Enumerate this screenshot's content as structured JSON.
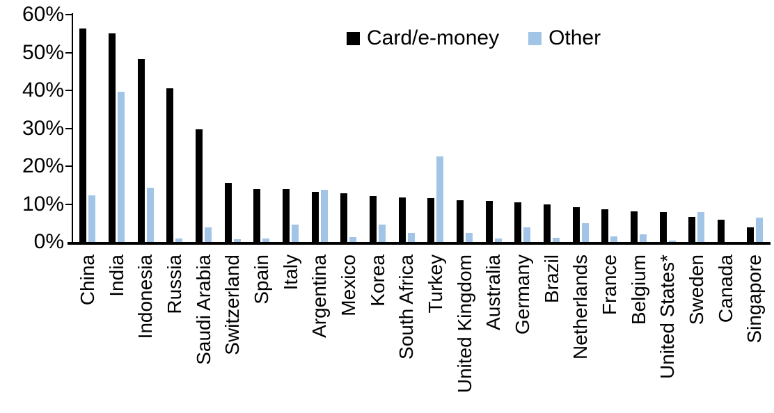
{
  "chart_data": {
    "type": "bar",
    "categories": [
      "China",
      "India",
      "Indonesia",
      "Russia",
      "Saudi Arabia",
      "Switzerland",
      "Spain",
      "Italy",
      "Argentina",
      "Mexico",
      "Korea",
      "South Africa",
      "Turkey",
      "United Kingdom",
      "Australia",
      "Germany",
      "Brazil",
      "Netherlands",
      "France",
      "Belgium",
      "United States*",
      "Sweden",
      "Canada",
      "Singapore"
    ],
    "series": [
      {
        "name": "Card/e-money",
        "color": "#000000",
        "values": [
          56.3,
          55.0,
          48.3,
          40.5,
          29.8,
          15.6,
          14.0,
          14.0,
          13.3,
          12.9,
          12.2,
          11.7,
          11.5,
          11.0,
          10.8,
          10.5,
          10.0,
          9.2,
          8.6,
          8.1,
          7.9,
          6.6,
          5.9,
          3.9
        ],
        "legend_label": "Card/e-money"
      },
      {
        "name": "Other",
        "color": "#A2C4E6",
        "values": [
          12.3,
          39.7,
          14.4,
          1.0,
          3.8,
          0.8,
          1.0,
          4.5,
          13.7,
          1.2,
          4.6,
          2.3,
          22.5,
          2.3,
          0.9,
          3.9,
          1.1,
          5.0,
          1.5,
          2.1,
          0.3,
          7.8,
          0.0,
          6.5
        ],
        "legend_label": "Other"
      }
    ],
    "ylim": [
      0,
      60
    ],
    "yticks": {
      "values": [
        0,
        10,
        20,
        30,
        40,
        50,
        60
      ],
      "labels": [
        "0%",
        "10%",
        "20%",
        "30%",
        "40%",
        "50%",
        "60%"
      ]
    },
    "xlabel": "",
    "ylabel": "",
    "grid": false,
    "legend_position": "top-center",
    "axis_color": "#000000",
    "background_color": "#FFFFFF"
  }
}
